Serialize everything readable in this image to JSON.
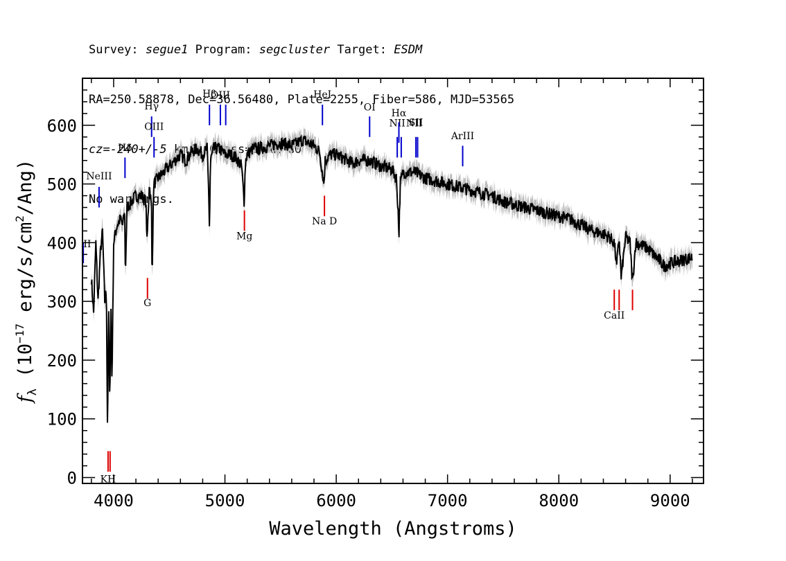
{
  "header": {
    "line1": {
      "survey_label": "Survey:",
      "survey": "segue1",
      "program_label": "Program:",
      "program": "segcluster",
      "target_label": "Target:",
      "target": "ESDM"
    },
    "line2": "RA=250.58878, Dec=36.56480, Plate=2255, Fiber=586, MJD=53565",
    "line3": {
      "cz_label": "cz=",
      "cz": "-240+/-5",
      "cz_unit": "km/s Class=STAR G0"
    },
    "line4": "No warnings."
  },
  "chart_data": {
    "type": "line",
    "xlabel": "Wavelength (Angstroms)",
    "ylabel": "f_λ (10^-17 erg/s/cm^2/Ang)",
    "ylabel_parts": {
      "symbol": "f",
      "symbol_sub": "λ",
      "prefix": " (10",
      "exponent": "−17",
      "middle": " erg/s/cm",
      "exponent2": "2",
      "suffix": "/Ang)"
    },
    "xlim": [
      3720,
      9300
    ],
    "ylim": [
      -10,
      680
    ],
    "x_ticks": [
      4000,
      5000,
      6000,
      7000,
      8000,
      9000
    ],
    "x_tick_labels": [
      "4000",
      "5000",
      "6000",
      "7000",
      "8000",
      "9000"
    ],
    "y_ticks": [
      0,
      100,
      200,
      300,
      400,
      500,
      600
    ],
    "y_tick_labels": [
      "0",
      "100",
      "200",
      "300",
      "400",
      "500",
      "600"
    ],
    "x_minor_step": 200,
    "y_minor_step": 20,
    "grid": false,
    "series": [
      {
        "role": "flux",
        "color": "#000000",
        "x": [
          3800,
          3820,
          3840,
          3860,
          3880,
          3900,
          3920,
          3935,
          3945,
          3955,
          3965,
          3975,
          3985,
          4000,
          4030,
          4060,
          4080,
          4100,
          4105,
          4120,
          4160,
          4200,
          4250,
          4290,
          4300,
          4320,
          4340,
          4345,
          4360,
          4400,
          4450,
          4500,
          4550,
          4600,
          4650,
          4700,
          4750,
          4800,
          4840,
          4855,
          4861,
          4870,
          4900,
          4950,
          5000,
          5050,
          5100,
          5150,
          5172,
          5185,
          5200,
          5250,
          5300,
          5400,
          5500,
          5600,
          5700,
          5800,
          5850,
          5890,
          5900,
          5950,
          6000,
          6050,
          6100,
          6150,
          6200,
          6300,
          6400,
          6500,
          6540,
          6555,
          6563,
          6575,
          6600,
          6700,
          6800,
          6900,
          7000,
          7100,
          7200,
          7400,
          7500,
          7600,
          7700,
          7800,
          7900,
          8000,
          8100,
          8200,
          8300,
          8400,
          8450,
          8498,
          8520,
          8542,
          8560,
          8600,
          8640,
          8662,
          8690,
          8750,
          8800,
          8850,
          8900,
          8950,
          9000,
          9100,
          9200
        ],
        "y": [
          340,
          280,
          400,
          300,
          380,
          420,
          300,
          320,
          70,
          300,
          120,
          300,
          160,
          400,
          430,
          440,
          430,
          450,
          340,
          460,
          470,
          480,
          480,
          470,
          400,
          500,
          460,
          340,
          500,
          510,
          520,
          530,
          540,
          550,
          540,
          555,
          560,
          550,
          560,
          480,
          420,
          540,
          560,
          560,
          550,
          550,
          545,
          530,
          470,
          540,
          550,
          560,
          560,
          565,
          570,
          565,
          575,
          565,
          555,
          500,
          540,
          550,
          550,
          545,
          540,
          535,
          540,
          540,
          530,
          525,
          510,
          460,
          410,
          500,
          520,
          520,
          510,
          505,
          500,
          495,
          490,
          480,
          470,
          465,
          460,
          455,
          450,
          445,
          440,
          430,
          420,
          415,
          410,
          400,
          360,
          410,
          340,
          410,
          400,
          330,
          400,
          395,
          390,
          380,
          370,
          360,
          365,
          370,
          375
        ]
      },
      {
        "role": "error-band",
        "color": "#bdbdbd",
        "half_width": 14
      }
    ],
    "emission_lines": [
      {
        "label": "OII",
        "x": 3727,
        "y0": 365,
        "y1": 400,
        "label_y": 392,
        "color": "#0000cc"
      },
      {
        "label": "NeIII",
        "x": 3869,
        "y0": 460,
        "y1": 495,
        "label_y": 508,
        "color": "#0000cc"
      },
      {
        "label": "Hδ",
        "x": 4102,
        "y0": 510,
        "y1": 545,
        "label_y": 556,
        "color": "#0000cc"
      },
      {
        "label": "Hγ",
        "x": 4341,
        "y0": 580,
        "y1": 615,
        "label_y": 627,
        "color": "#0000cc"
      },
      {
        "label": "OIII",
        "x": 4363,
        "y0": 545,
        "y1": 580,
        "label_y": 592,
        "color": "#0000cc"
      },
      {
        "label": "Hβ",
        "x": 4861,
        "y0": 600,
        "y1": 635,
        "label_y": 648,
        "color": "#0000cc"
      },
      {
        "label": "OIII",
        "x": 4959,
        "y0": 600,
        "y1": 635,
        "label_y": 646,
        "color": "#0000cc"
      },
      {
        "label": "",
        "x": 5007,
        "y0": 600,
        "y1": 635,
        "label_y": 0,
        "color": "#0000cc"
      },
      {
        "label": "HeI",
        "x": 5876,
        "y0": 600,
        "y1": 635,
        "label_y": 647,
        "color": "#0000cc"
      },
      {
        "label": "OI",
        "x": 6300,
        "y0": 580,
        "y1": 615,
        "label_y": 625,
        "color": "#0000cc"
      },
      {
        "label": "NII",
        "x": 6548,
        "y0": 545,
        "y1": 580,
        "label_y": 598,
        "color": "#0000cc"
      },
      {
        "label": "Hα",
        "x": 6563,
        "y0": 570,
        "y1": 605,
        "label_y": 615,
        "color": "#0000cc"
      },
      {
        "label": "",
        "x": 6584,
        "y0": 545,
        "y1": 580,
        "label_y": 0,
        "color": "#0000cc"
      },
      {
        "label": "NII",
        "x": 6700,
        "y0": 0,
        "y1": 0,
        "label_y": 598,
        "color": "#0000cc"
      },
      {
        "label": "SII",
        "x": 6716,
        "y0": 545,
        "y1": 580,
        "label_y": 599,
        "color": "#0000cc"
      },
      {
        "label": "",
        "x": 6731,
        "y0": 545,
        "y1": 580,
        "label_y": 0,
        "color": "#0000cc"
      },
      {
        "label": "ArIII",
        "x": 7136,
        "y0": 530,
        "y1": 565,
        "label_y": 576,
        "color": "#0000cc"
      }
    ],
    "absorption_lines": [
      {
        "label": "KH",
        "x": 3950,
        "y0": 10,
        "y1": 45,
        "label_y": -8,
        "color": "#dd0000"
      },
      {
        "label": "",
        "x": 3968,
        "y0": 10,
        "y1": 45,
        "label_y": 0,
        "color": "#dd0000"
      },
      {
        "label": "G",
        "x": 4304,
        "y0": 305,
        "y1": 340,
        "label_y": 292,
        "color": "#dd0000"
      },
      {
        "label": "Mg",
        "x": 5175,
        "y0": 420,
        "y1": 455,
        "label_y": 406,
        "color": "#dd0000"
      },
      {
        "label": "Na D",
        "x": 5894,
        "y0": 445,
        "y1": 480,
        "label_y": 431,
        "color": "#dd0000"
      },
      {
        "label": "CaII",
        "x": 8498,
        "y0": 285,
        "y1": 320,
        "label_y": 271,
        "color": "#dd0000"
      },
      {
        "label": "",
        "x": 8542,
        "y0": 285,
        "y1": 320,
        "label_y": 0,
        "color": "#dd0000"
      },
      {
        "label": "",
        "x": 8662,
        "y0": 285,
        "y1": 320,
        "label_y": 0,
        "color": "#dd0000"
      }
    ]
  }
}
